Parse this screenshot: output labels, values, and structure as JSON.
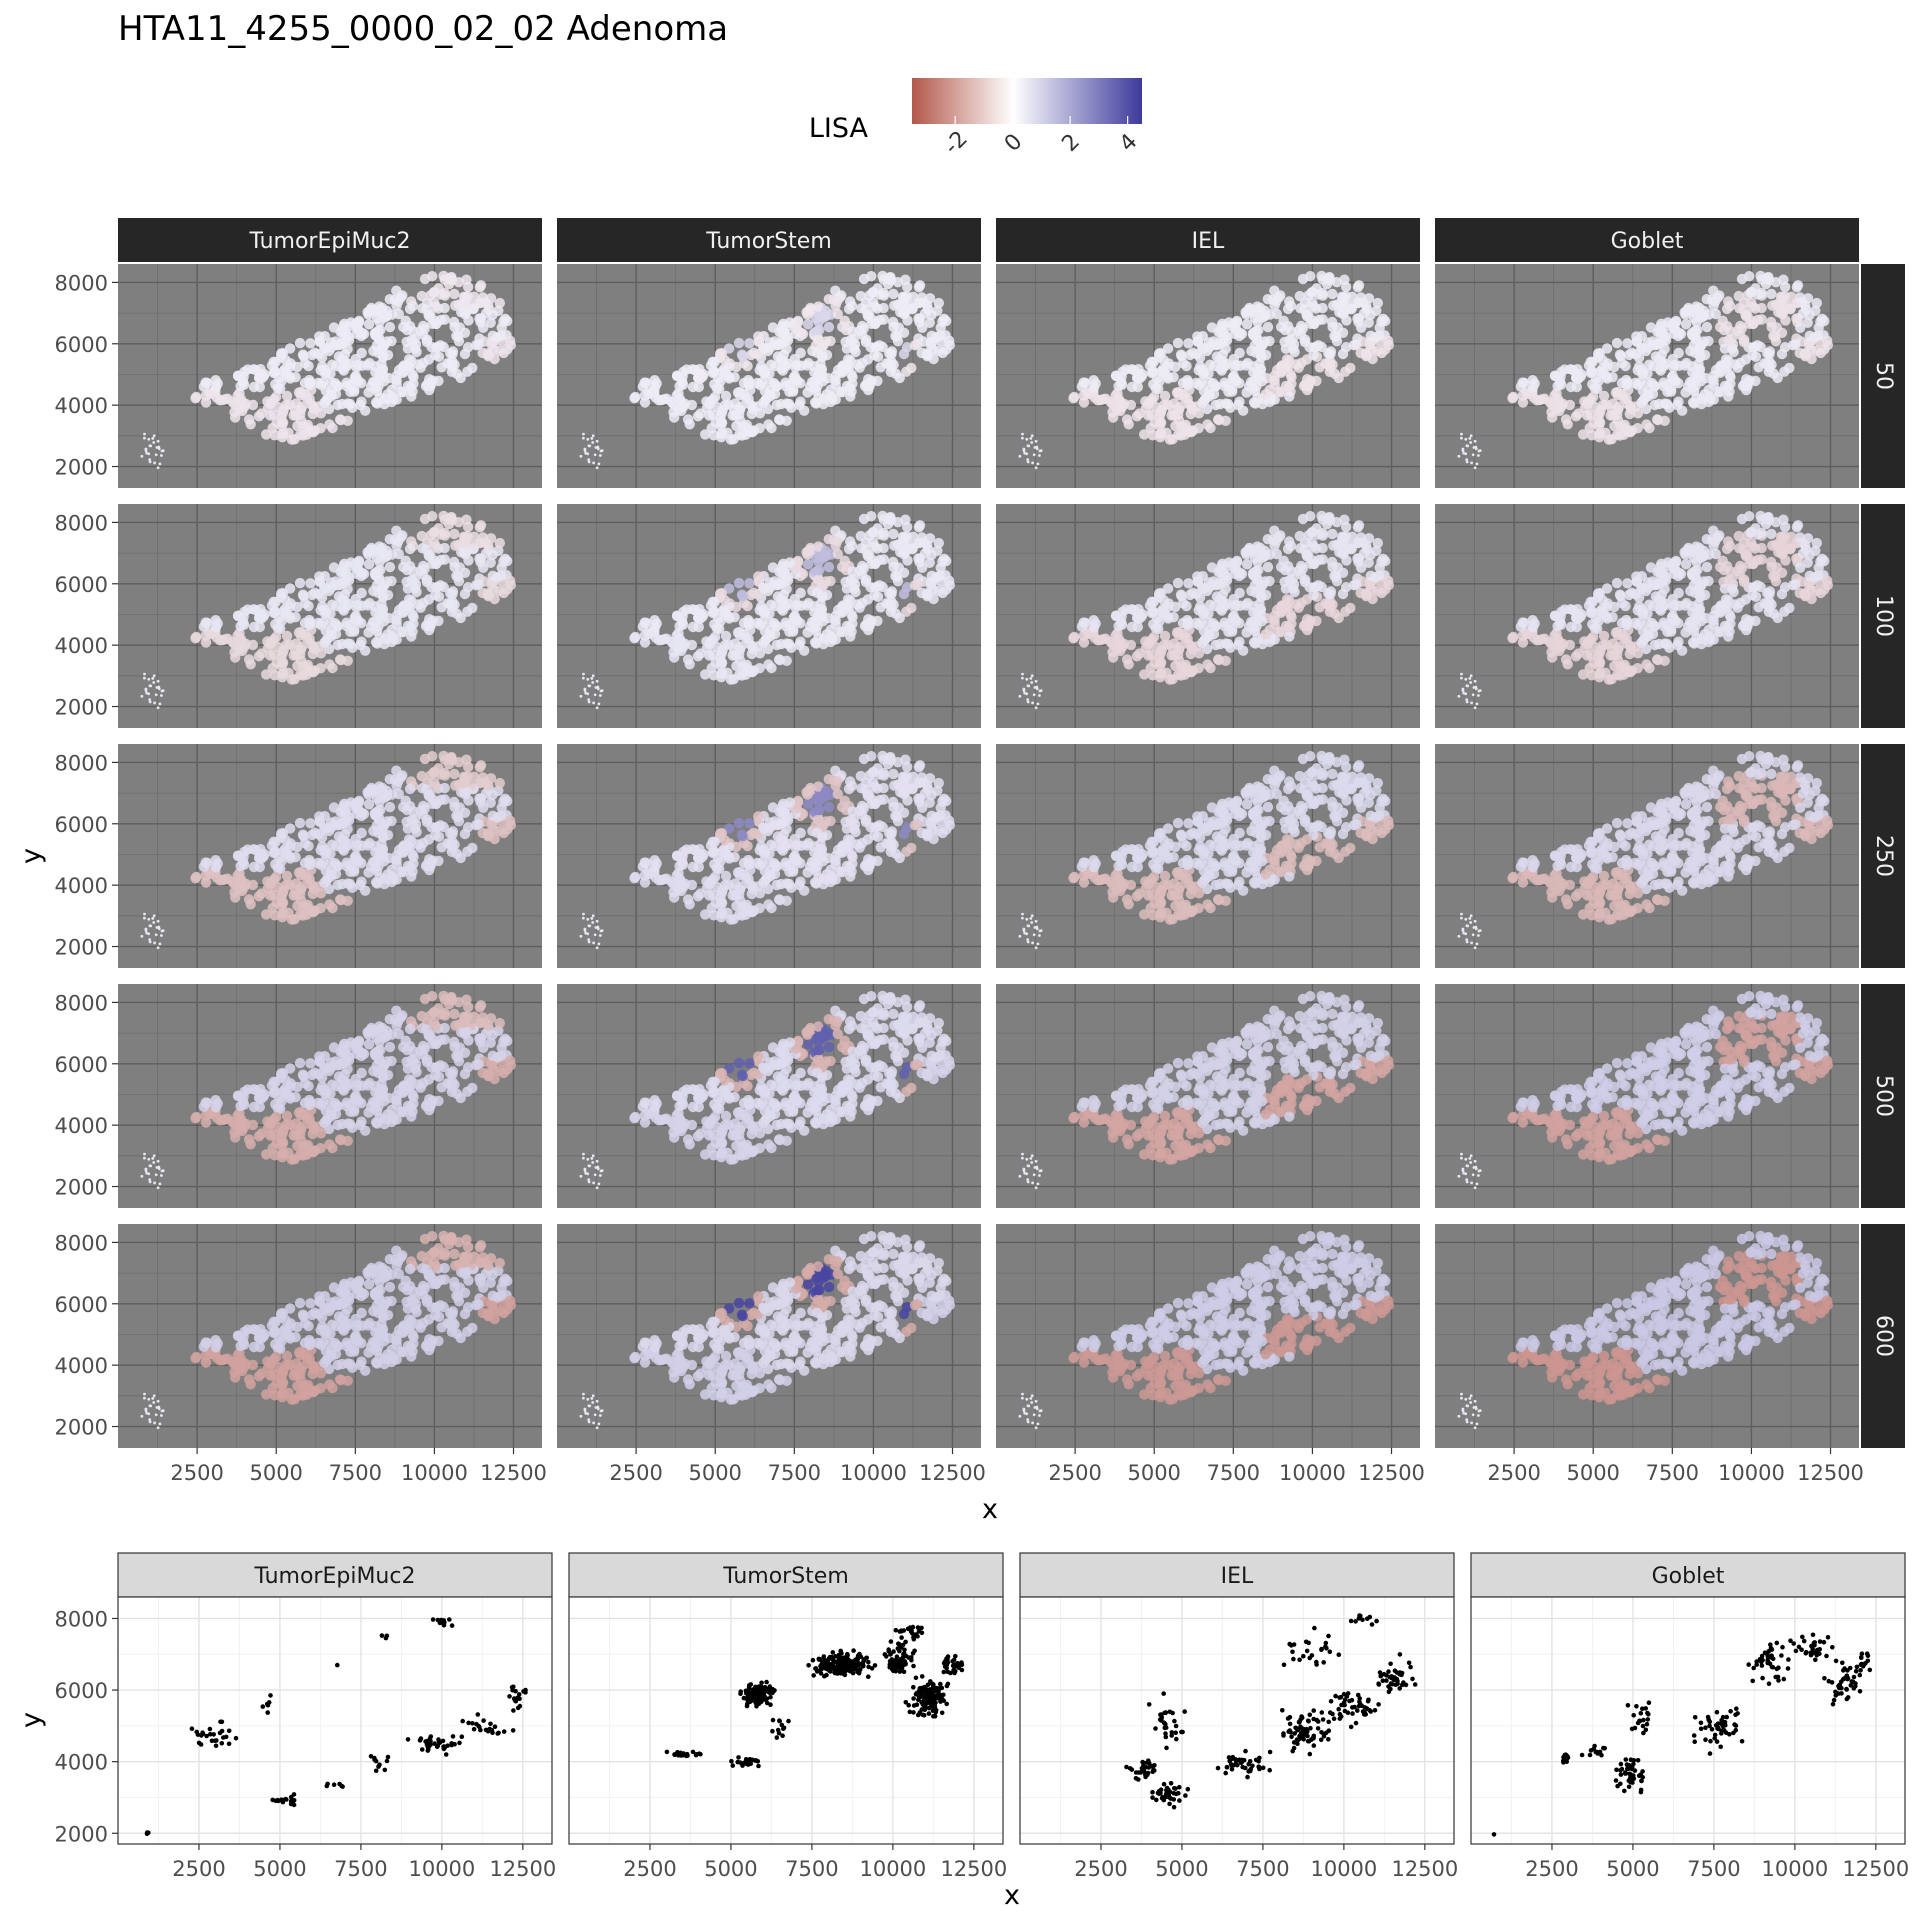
{
  "title": "HTA11_4255_0000_02_02 Adenoma",
  "legend": {
    "title": "LISA",
    "placement": "top-center",
    "ticks": [
      "-2",
      "0",
      "2",
      "4"
    ],
    "tick_values": [
      -2,
      0,
      2,
      4
    ],
    "range": [
      -3.5,
      4.5
    ],
    "colors": {
      "low": "#b2584a",
      "mid": "#ffffff",
      "high": "#3d3a9c"
    }
  },
  "chart_data": [
    {
      "type": "scatter",
      "description_key": "top-facets",
      "columns": [
        "TumorEpiMuc2",
        "TumorStem",
        "IEL",
        "Goblet"
      ],
      "rows": [
        "50",
        "100",
        "250",
        "500",
        "600"
      ],
      "xlabel": "x",
      "ylabel": "y",
      "xlim": [
        0,
        13400
      ],
      "ylim": [
        1300,
        8600
      ],
      "xticks": [
        "2500",
        "5000",
        "7500",
        "10000",
        "12500"
      ],
      "xtick_values": [
        2500,
        5000,
        7500,
        10000,
        12500
      ],
      "yticks": [
        "2000",
        "4000",
        "6000",
        "8000"
      ],
      "ytick_values": [
        2000,
        4000,
        6000,
        8000
      ],
      "panel_background": "#7f7f7f",
      "grid": true
    },
    {
      "type": "scatter",
      "columns": [
        "TumorEpiMuc2",
        "TumorStem",
        "IEL",
        "Goblet"
      ],
      "xlabel": "x",
      "ylabel": "y",
      "xlim": [
        0,
        13400
      ],
      "ylim": [
        1700,
        8600
      ],
      "xticks": [
        "2500",
        "5000",
        "7500",
        "10000",
        "12500"
      ],
      "xtick_values": [
        2500,
        5000,
        7500,
        10000,
        12500
      ],
      "yticks": [
        "2000",
        "4000",
        "6000",
        "8000"
      ],
      "ytick_values": [
        2000,
        4000,
        6000,
        8000
      ],
      "grid": true,
      "point_color": "#000000",
      "series": [
        {
          "name": "TumorEpiMuc2",
          "clusters": [
            [
              900,
              2000,
              60,
              40,
              4
            ],
            [
              3000,
              4800,
              600,
              400,
              26
            ],
            [
              4500,
              5500,
              250,
              300,
              6
            ],
            [
              5200,
              2900,
              500,
              150,
              18
            ],
            [
              6800,
              3300,
              400,
              100,
              6
            ],
            [
              6800,
              6700,
              50,
              50,
              1
            ],
            [
              8300,
              7500,
              150,
              50,
              3
            ],
            [
              10000,
              7900,
              400,
              150,
              12
            ],
            [
              8000,
              3900,
              500,
              300,
              10
            ],
            [
              9800,
              4500,
              700,
              250,
              40
            ],
            [
              11300,
              5000,
              800,
              300,
              22
            ],
            [
              12300,
              5900,
              300,
              500,
              18
            ]
          ]
        },
        {
          "name": "TumorStem",
          "clusters": [
            [
              3500,
              4200,
              700,
              80,
              20
            ],
            [
              5500,
              4000,
              400,
              120,
              25
            ],
            [
              5800,
              5900,
              500,
              300,
              120
            ],
            [
              6500,
              5000,
              300,
              400,
              12
            ],
            [
              8400,
              6700,
              900,
              350,
              180
            ],
            [
              10200,
              6900,
              600,
              600,
              40
            ],
            [
              10100,
              6700,
              250,
              180,
              40
            ],
            [
              11100,
              5800,
              550,
              550,
              140
            ],
            [
              11800,
              6700,
              500,
              300,
              30
            ],
            [
              10500,
              7600,
              400,
              250,
              20
            ]
          ]
        },
        {
          "name": "IEL",
          "clusters": [
            [
              3700,
              3800,
              600,
              300,
              30
            ],
            [
              4600,
              3100,
              500,
              300,
              40
            ],
            [
              4500,
              5100,
              600,
              700,
              30
            ],
            [
              7000,
              3900,
              800,
              350,
              40
            ],
            [
              8800,
              4800,
              900,
              600,
              70
            ],
            [
              10200,
              5500,
              800,
              500,
              50
            ],
            [
              11500,
              6400,
              700,
              500,
              40
            ],
            [
              9000,
              7200,
              1000,
              600,
              25
            ],
            [
              10500,
              8000,
              500,
              200,
              10
            ]
          ]
        },
        {
          "name": "Goblet",
          "clusters": [
            [
              700,
              1950,
              30,
              30,
              1
            ],
            [
              2900,
              4100,
              150,
              150,
              14
            ],
            [
              3800,
              4300,
              400,
              250,
              12
            ],
            [
              5000,
              3600,
              500,
              500,
              45
            ],
            [
              5300,
              5200,
              500,
              500,
              20
            ],
            [
              7500,
              5000,
              800,
              600,
              50
            ],
            [
              9200,
              6700,
              700,
              600,
              40
            ],
            [
              10500,
              7200,
              600,
              400,
              30
            ],
            [
              11500,
              6200,
              600,
              600,
              40
            ],
            [
              12100,
              6800,
              300,
              400,
              15
            ]
          ]
        }
      ]
    }
  ]
}
